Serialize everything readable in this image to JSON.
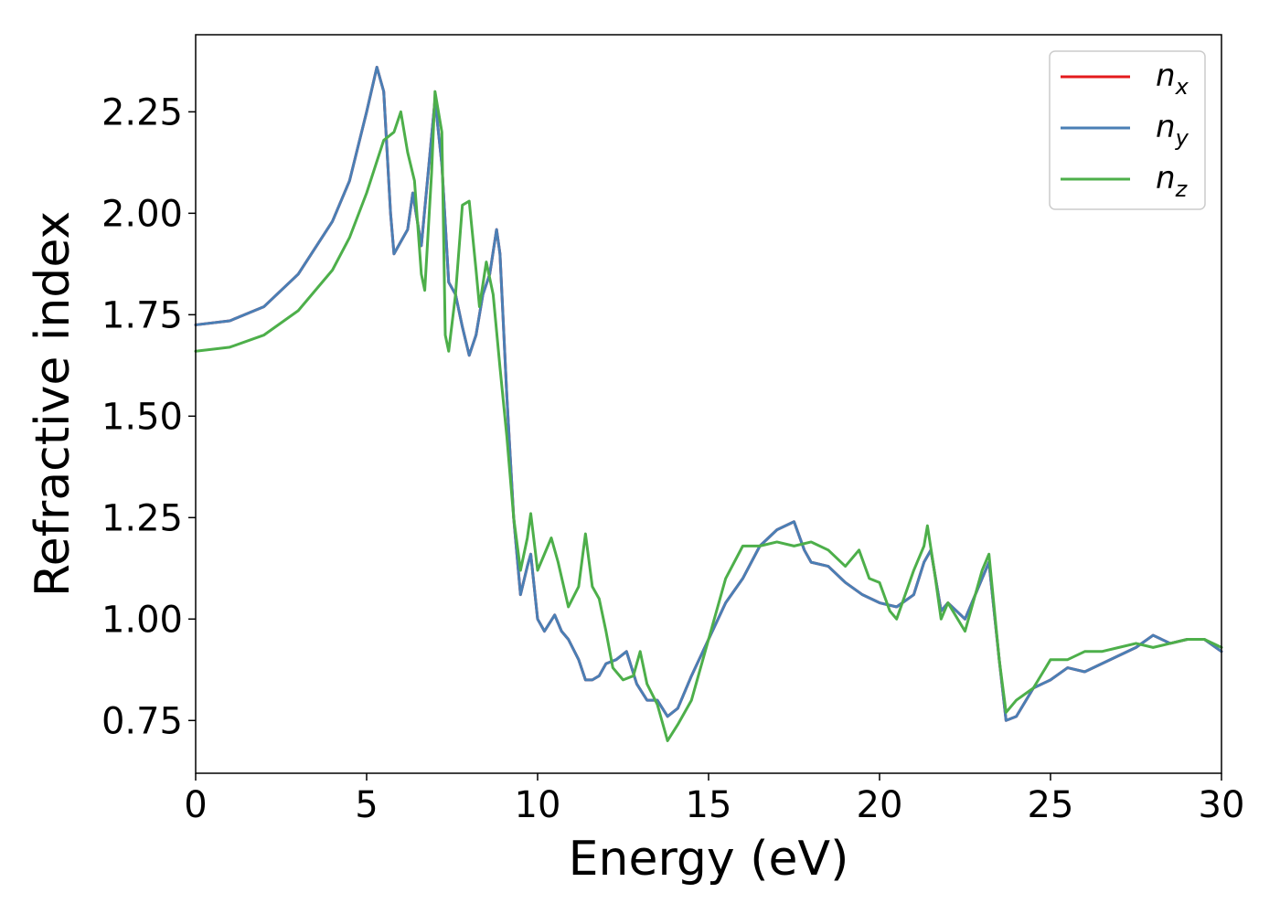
{
  "chart_data": {
    "type": "line",
    "title": "",
    "xlabel": "Energy (eV)",
    "ylabel": "Refractive index",
    "xlim": [
      0,
      30
    ],
    "ylim": [
      0.62,
      2.44
    ],
    "xticks": [
      0,
      5,
      10,
      15,
      20,
      25,
      30
    ],
    "xtick_labels": [
      "0",
      "5",
      "10",
      "15",
      "20",
      "25",
      "30"
    ],
    "yticks": [
      0.75,
      1.0,
      1.25,
      1.5,
      1.75,
      2.0,
      2.25
    ],
    "ytick_labels": [
      "0.75",
      "1.00",
      "1.25",
      "1.50",
      "1.75",
      "2.00",
      "2.25"
    ],
    "grid": false,
    "legend_position": "top-right",
    "series": [
      {
        "name": "n_x",
        "legend_main": "n",
        "legend_sub": "x",
        "color": "#e41a1c",
        "points": [
          [
            0,
            1.725
          ],
          [
            1,
            1.735
          ],
          [
            2,
            1.77
          ],
          [
            3,
            1.85
          ],
          [
            4,
            1.98
          ],
          [
            4.5,
            2.08
          ],
          [
            5.0,
            2.25
          ],
          [
            5.3,
            2.36
          ],
          [
            5.5,
            2.3
          ],
          [
            5.7,
            2.0
          ],
          [
            5.8,
            1.9
          ],
          [
            6.0,
            1.93
          ],
          [
            6.2,
            1.96
          ],
          [
            6.35,
            2.05
          ],
          [
            6.6,
            1.92
          ],
          [
            6.8,
            2.1
          ],
          [
            7.0,
            2.28
          ],
          [
            7.2,
            2.12
          ],
          [
            7.4,
            1.83
          ],
          [
            7.6,
            1.8
          ],
          [
            7.8,
            1.72
          ],
          [
            8.0,
            1.65
          ],
          [
            8.2,
            1.7
          ],
          [
            8.4,
            1.8
          ],
          [
            8.6,
            1.85
          ],
          [
            8.8,
            1.96
          ],
          [
            8.9,
            1.9
          ],
          [
            9.1,
            1.55
          ],
          [
            9.3,
            1.25
          ],
          [
            9.5,
            1.06
          ],
          [
            9.7,
            1.13
          ],
          [
            9.8,
            1.16
          ],
          [
            10.0,
            1.0
          ],
          [
            10.2,
            0.97
          ],
          [
            10.5,
            1.01
          ],
          [
            10.7,
            0.97
          ],
          [
            10.9,
            0.95
          ],
          [
            11.2,
            0.9
          ],
          [
            11.4,
            0.85
          ],
          [
            11.6,
            0.85
          ],
          [
            11.8,
            0.86
          ],
          [
            12.0,
            0.89
          ],
          [
            12.3,
            0.9
          ],
          [
            12.6,
            0.92
          ],
          [
            12.9,
            0.84
          ],
          [
            13.2,
            0.8
          ],
          [
            13.5,
            0.8
          ],
          [
            13.8,
            0.76
          ],
          [
            14.1,
            0.78
          ],
          [
            14.5,
            0.86
          ],
          [
            15.0,
            0.95
          ],
          [
            15.5,
            1.04
          ],
          [
            16.0,
            1.1
          ],
          [
            16.5,
            1.18
          ],
          [
            17.0,
            1.22
          ],
          [
            17.5,
            1.24
          ],
          [
            17.8,
            1.17
          ],
          [
            18.0,
            1.14
          ],
          [
            18.5,
            1.13
          ],
          [
            19.0,
            1.09
          ],
          [
            19.5,
            1.06
          ],
          [
            20.0,
            1.04
          ],
          [
            20.5,
            1.03
          ],
          [
            21.0,
            1.06
          ],
          [
            21.3,
            1.14
          ],
          [
            21.5,
            1.17
          ],
          [
            21.8,
            1.02
          ],
          [
            22.0,
            1.04
          ],
          [
            22.5,
            1.0
          ],
          [
            23.0,
            1.1
          ],
          [
            23.2,
            1.14
          ],
          [
            23.5,
            0.9
          ],
          [
            23.7,
            0.75
          ],
          [
            24.0,
            0.76
          ],
          [
            24.5,
            0.83
          ],
          [
            25.0,
            0.85
          ],
          [
            25.5,
            0.88
          ],
          [
            26.0,
            0.87
          ],
          [
            26.5,
            0.89
          ],
          [
            27.0,
            0.91
          ],
          [
            27.5,
            0.93
          ],
          [
            28.0,
            0.96
          ],
          [
            28.5,
            0.94
          ],
          [
            29.0,
            0.95
          ],
          [
            29.5,
            0.95
          ],
          [
            30.0,
            0.92
          ]
        ]
      },
      {
        "name": "n_y",
        "legend_main": "n",
        "legend_sub": "y",
        "color": "#4a7fb5",
        "points": [
          [
            0,
            1.725
          ],
          [
            1,
            1.735
          ],
          [
            2,
            1.77
          ],
          [
            3,
            1.85
          ],
          [
            4,
            1.98
          ],
          [
            4.5,
            2.08
          ],
          [
            5.0,
            2.25
          ],
          [
            5.3,
            2.36
          ],
          [
            5.5,
            2.3
          ],
          [
            5.7,
            2.0
          ],
          [
            5.8,
            1.9
          ],
          [
            6.0,
            1.93
          ],
          [
            6.2,
            1.96
          ],
          [
            6.35,
            2.05
          ],
          [
            6.6,
            1.92
          ],
          [
            6.8,
            2.1
          ],
          [
            7.0,
            2.28
          ],
          [
            7.2,
            2.12
          ],
          [
            7.4,
            1.83
          ],
          [
            7.6,
            1.8
          ],
          [
            7.8,
            1.72
          ],
          [
            8.0,
            1.65
          ],
          [
            8.2,
            1.7
          ],
          [
            8.4,
            1.8
          ],
          [
            8.6,
            1.85
          ],
          [
            8.8,
            1.96
          ],
          [
            8.9,
            1.9
          ],
          [
            9.1,
            1.55
          ],
          [
            9.3,
            1.25
          ],
          [
            9.5,
            1.06
          ],
          [
            9.7,
            1.13
          ],
          [
            9.8,
            1.16
          ],
          [
            10.0,
            1.0
          ],
          [
            10.2,
            0.97
          ],
          [
            10.5,
            1.01
          ],
          [
            10.7,
            0.97
          ],
          [
            10.9,
            0.95
          ],
          [
            11.2,
            0.9
          ],
          [
            11.4,
            0.85
          ],
          [
            11.6,
            0.85
          ],
          [
            11.8,
            0.86
          ],
          [
            12.0,
            0.89
          ],
          [
            12.3,
            0.9
          ],
          [
            12.6,
            0.92
          ],
          [
            12.9,
            0.84
          ],
          [
            13.2,
            0.8
          ],
          [
            13.5,
            0.8
          ],
          [
            13.8,
            0.76
          ],
          [
            14.1,
            0.78
          ],
          [
            14.5,
            0.86
          ],
          [
            15.0,
            0.95
          ],
          [
            15.5,
            1.04
          ],
          [
            16.0,
            1.1
          ],
          [
            16.5,
            1.18
          ],
          [
            17.0,
            1.22
          ],
          [
            17.5,
            1.24
          ],
          [
            17.8,
            1.17
          ],
          [
            18.0,
            1.14
          ],
          [
            18.5,
            1.13
          ],
          [
            19.0,
            1.09
          ],
          [
            19.5,
            1.06
          ],
          [
            20.0,
            1.04
          ],
          [
            20.5,
            1.03
          ],
          [
            21.0,
            1.06
          ],
          [
            21.3,
            1.14
          ],
          [
            21.5,
            1.17
          ],
          [
            21.8,
            1.02
          ],
          [
            22.0,
            1.04
          ],
          [
            22.5,
            1.0
          ],
          [
            23.0,
            1.1
          ],
          [
            23.2,
            1.14
          ],
          [
            23.5,
            0.9
          ],
          [
            23.7,
            0.75
          ],
          [
            24.0,
            0.76
          ],
          [
            24.5,
            0.83
          ],
          [
            25.0,
            0.85
          ],
          [
            25.5,
            0.88
          ],
          [
            26.0,
            0.87
          ],
          [
            26.5,
            0.89
          ],
          [
            27.0,
            0.91
          ],
          [
            27.5,
            0.93
          ],
          [
            28.0,
            0.96
          ],
          [
            28.5,
            0.94
          ],
          [
            29.0,
            0.95
          ],
          [
            29.5,
            0.95
          ],
          [
            30.0,
            0.92
          ]
        ]
      },
      {
        "name": "n_z",
        "legend_main": "n",
        "legend_sub": "z",
        "color": "#4daf4a",
        "points": [
          [
            0,
            1.66
          ],
          [
            1,
            1.67
          ],
          [
            2,
            1.7
          ],
          [
            3,
            1.76
          ],
          [
            4,
            1.86
          ],
          [
            4.5,
            1.94
          ],
          [
            5.0,
            2.05
          ],
          [
            5.5,
            2.18
          ],
          [
            5.8,
            2.2
          ],
          [
            6.0,
            2.25
          ],
          [
            6.2,
            2.15
          ],
          [
            6.4,
            2.08
          ],
          [
            6.6,
            1.85
          ],
          [
            6.7,
            1.81
          ],
          [
            6.9,
            2.1
          ],
          [
            7.0,
            2.3
          ],
          [
            7.2,
            2.2
          ],
          [
            7.3,
            1.7
          ],
          [
            7.4,
            1.66
          ],
          [
            7.6,
            1.8
          ],
          [
            7.8,
            2.02
          ],
          [
            8.0,
            2.03
          ],
          [
            8.2,
            1.86
          ],
          [
            8.3,
            1.77
          ],
          [
            8.5,
            1.88
          ],
          [
            8.7,
            1.8
          ],
          [
            8.9,
            1.62
          ],
          [
            9.1,
            1.45
          ],
          [
            9.3,
            1.25
          ],
          [
            9.5,
            1.12
          ],
          [
            9.7,
            1.2
          ],
          [
            9.8,
            1.26
          ],
          [
            10.0,
            1.12
          ],
          [
            10.2,
            1.16
          ],
          [
            10.4,
            1.2
          ],
          [
            10.6,
            1.14
          ],
          [
            10.9,
            1.03
          ],
          [
            11.2,
            1.08
          ],
          [
            11.4,
            1.21
          ],
          [
            11.6,
            1.08
          ],
          [
            11.8,
            1.05
          ],
          [
            12.0,
            0.97
          ],
          [
            12.2,
            0.88
          ],
          [
            12.5,
            0.85
          ],
          [
            12.8,
            0.86
          ],
          [
            13.0,
            0.92
          ],
          [
            13.2,
            0.84
          ],
          [
            13.5,
            0.79
          ],
          [
            13.8,
            0.7
          ],
          [
            14.1,
            0.74
          ],
          [
            14.5,
            0.8
          ],
          [
            15.0,
            0.95
          ],
          [
            15.5,
            1.1
          ],
          [
            16.0,
            1.18
          ],
          [
            16.5,
            1.18
          ],
          [
            17.0,
            1.19
          ],
          [
            17.5,
            1.18
          ],
          [
            18.0,
            1.19
          ],
          [
            18.5,
            1.17
          ],
          [
            19.0,
            1.13
          ],
          [
            19.4,
            1.17
          ],
          [
            19.7,
            1.1
          ],
          [
            20.0,
            1.09
          ],
          [
            20.3,
            1.02
          ],
          [
            20.5,
            1.0
          ],
          [
            21.0,
            1.12
          ],
          [
            21.3,
            1.18
          ],
          [
            21.4,
            1.23
          ],
          [
            21.6,
            1.12
          ],
          [
            21.8,
            1.0
          ],
          [
            22.0,
            1.04
          ],
          [
            22.5,
            0.97
          ],
          [
            23.0,
            1.12
          ],
          [
            23.2,
            1.16
          ],
          [
            23.5,
            0.9
          ],
          [
            23.7,
            0.77
          ],
          [
            24.0,
            0.8
          ],
          [
            24.5,
            0.83
          ],
          [
            25.0,
            0.9
          ],
          [
            25.5,
            0.9
          ],
          [
            26.0,
            0.92
          ],
          [
            26.5,
            0.92
          ],
          [
            27.0,
            0.93
          ],
          [
            27.5,
            0.94
          ],
          [
            28.0,
            0.93
          ],
          [
            28.5,
            0.94
          ],
          [
            29.0,
            0.95
          ],
          [
            29.5,
            0.95
          ],
          [
            30.0,
            0.93
          ]
        ]
      }
    ]
  }
}
